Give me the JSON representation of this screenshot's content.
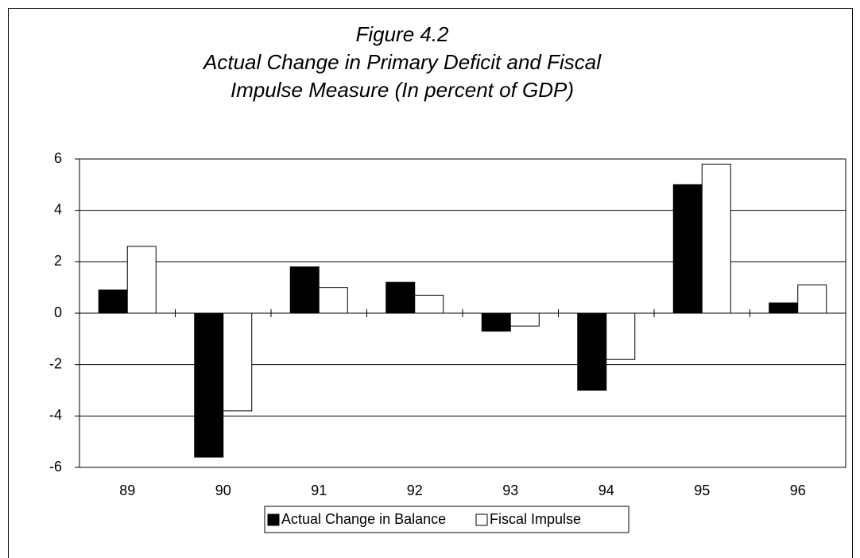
{
  "chart_data": {
    "type": "bar",
    "title": [
      "Figure 4.2",
      "Actual Change in Primary Deficit and Fiscal",
      "Impulse Measure (In percent of GDP)"
    ],
    "categories": [
      "89",
      "90",
      "91",
      "92",
      "93",
      "94",
      "95",
      "96"
    ],
    "series": [
      {
        "name": "Actual Change in Balance",
        "color": "#000000",
        "values": [
          0.9,
          -5.6,
          1.8,
          1.2,
          -0.7,
          -3.0,
          5.0,
          0.4
        ]
      },
      {
        "name": "Fiscal Impulse",
        "color": "#ffffff",
        "values": [
          2.6,
          -3.8,
          1.0,
          0.7,
          -0.5,
          -1.8,
          5.8,
          1.1
        ]
      }
    ],
    "ylim": [
      -6,
      6
    ],
    "yticks": [
      -6,
      -4,
      -2,
      0,
      2,
      4,
      6
    ],
    "grid": true,
    "legend": "bottom"
  }
}
